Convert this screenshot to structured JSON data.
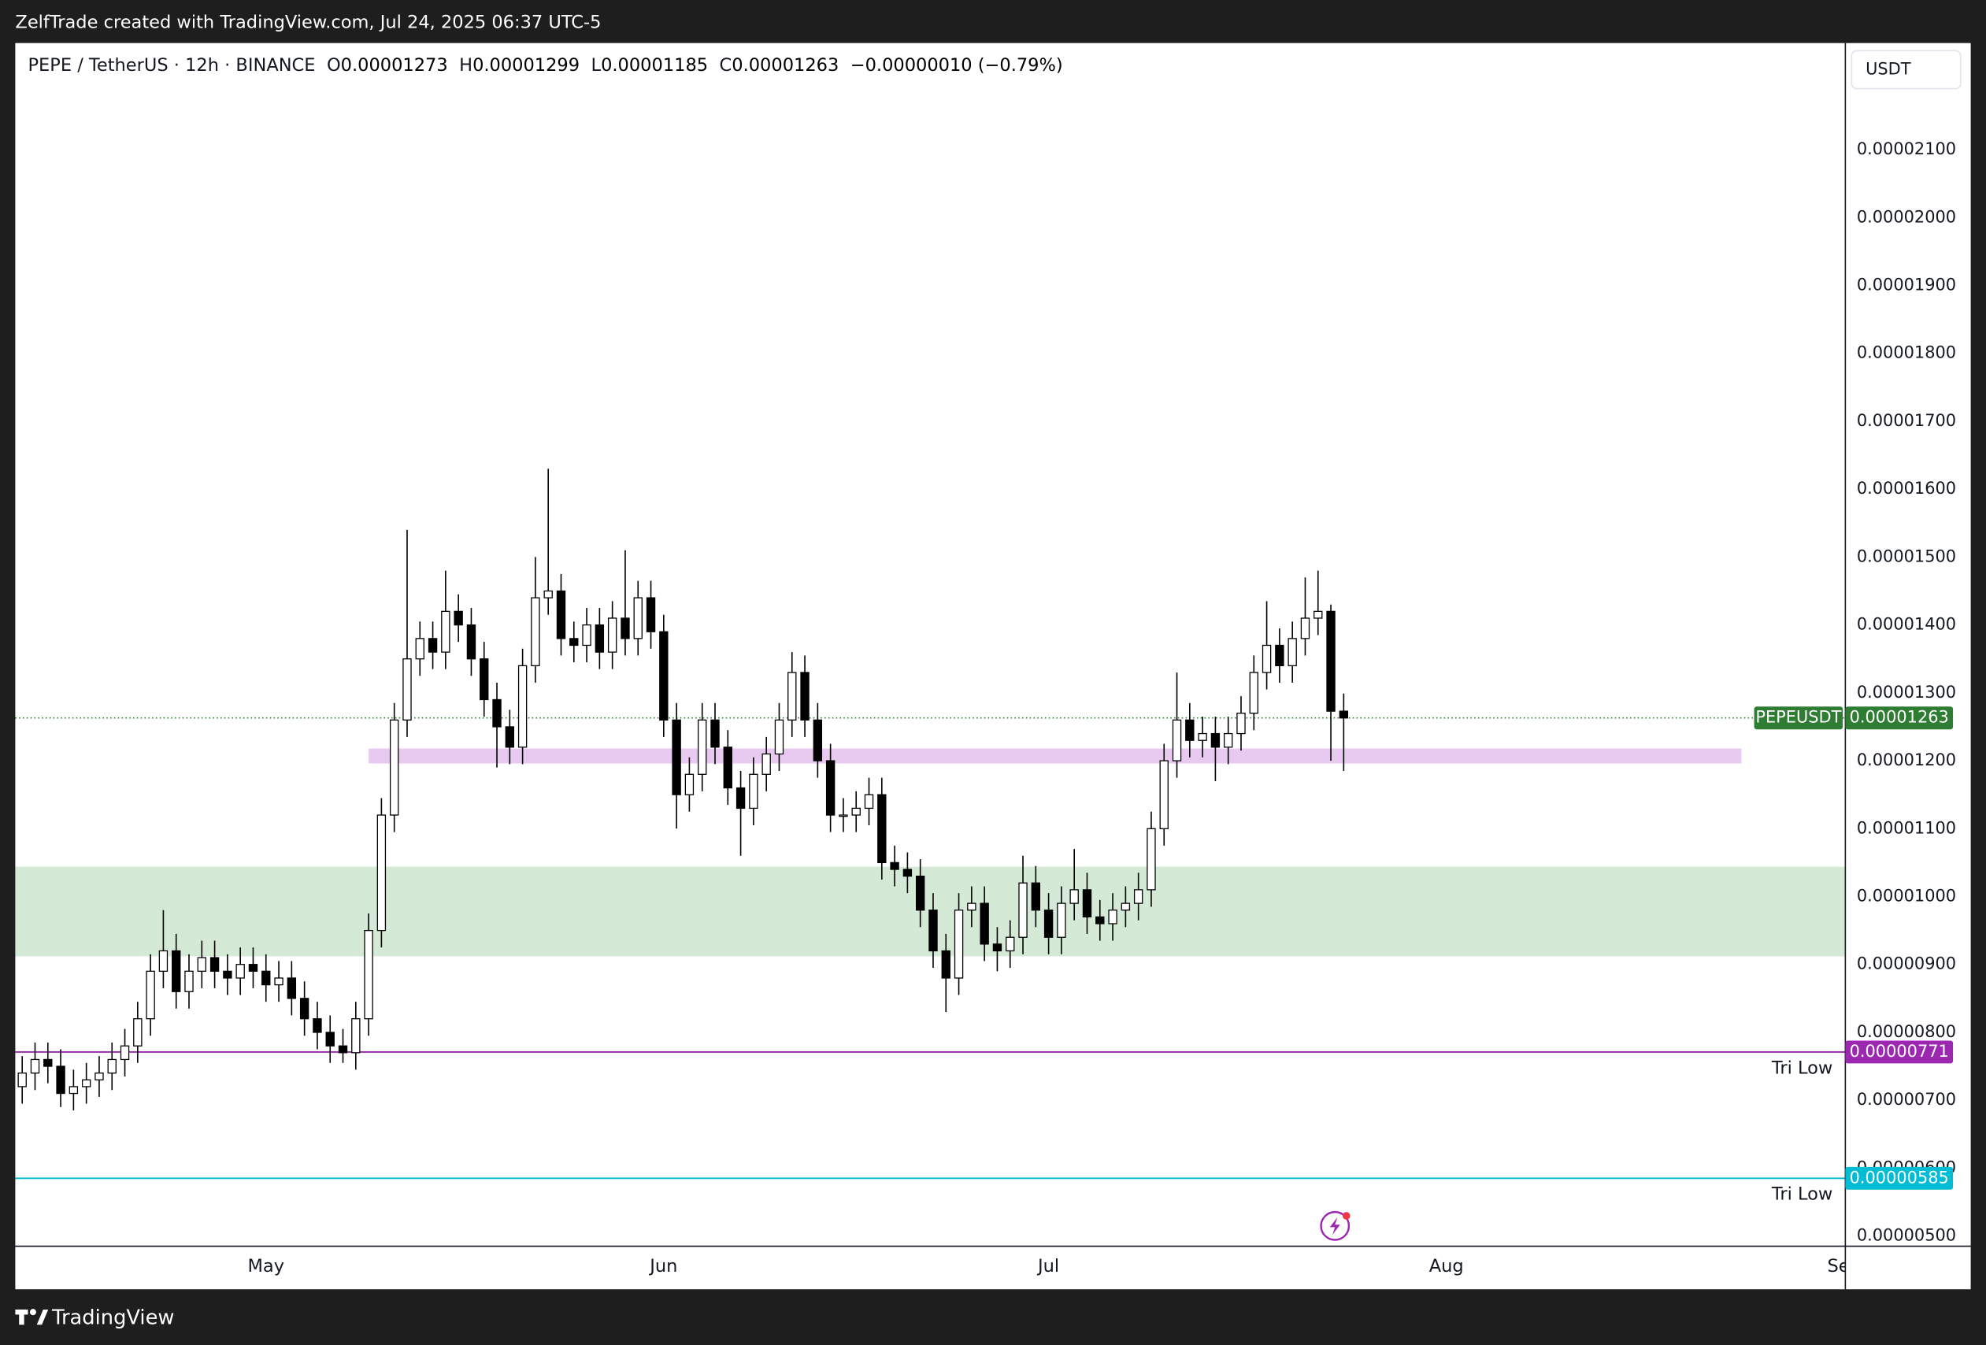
{
  "header": {
    "caption": "ZelfTrade created with TradingView.com, Jul 24, 2025 06:37 UTC-5",
    "currency": "USDT",
    "brand": "TradingView"
  },
  "chart_data": {
    "type": "candlestick",
    "legend": {
      "symbol": "PEPE / TetherUS · 12h · BINANCE",
      "fields": [
        {
          "label": "O",
          "value": "0.00001273"
        },
        {
          "label": "H",
          "value": "0.00001299"
        },
        {
          "label": "L",
          "value": "0.00001185"
        },
        {
          "label": "C",
          "value": "0.00001263"
        }
      ],
      "change": "−0.00000010 (−0.79%)"
    },
    "series": [
      {
        "name": "PEPEUSDT",
        "up_color": "#ffffff",
        "down_color": "#000000",
        "outline": "#000000",
        "open": [
          7.2e-06,
          7.4e-06,
          7.6e-06,
          7.5e-06,
          7.1e-06,
          7.2e-06,
          7.3e-06,
          7.4e-06,
          7.6e-06,
          7.8e-06,
          8.2e-06,
          8.9e-06,
          9.2e-06,
          8.6e-06,
          8.9e-06,
          9.1e-06,
          8.9e-06,
          8.8e-06,
          9e-06,
          8.9e-06,
          8.7e-06,
          8.8e-06,
          8.5e-06,
          8.2e-06,
          8e-06,
          7.8e-06,
          7.7e-06,
          8.2e-06,
          9.5e-06,
          1.12e-05,
          1.26e-05,
          1.35e-05,
          1.38e-05,
          1.36e-05,
          1.42e-05,
          1.4e-05,
          1.35e-05,
          1.29e-05,
          1.25e-05,
          1.22e-05,
          1.34e-05,
          1.44e-05,
          1.45e-05,
          1.38e-05,
          1.37e-05,
          1.4e-05,
          1.36e-05,
          1.41e-05,
          1.38e-05,
          1.44e-05,
          1.39e-05,
          1.26e-05,
          1.15e-05,
          1.18e-05,
          1.26e-05,
          1.22e-05,
          1.16e-05,
          1.13e-05,
          1.18e-05,
          1.21e-05,
          1.26e-05,
          1.33e-05,
          1.26e-05,
          1.2e-05,
          1.12e-05,
          1.12e-05,
          1.13e-05,
          1.15e-05,
          1.05e-05,
          1.04e-05,
          1.03e-05,
          9.8e-06,
          9.2e-06,
          8.8e-06,
          9.8e-06,
          9.9e-06,
          9.3e-06,
          9.2e-06,
          9.4e-06,
          1.02e-05,
          9.8e-06,
          9.4e-06,
          9.9e-06,
          1.01e-05,
          9.7e-06,
          9.6e-06,
          9.8e-06,
          9.9e-06,
          1.01e-05,
          1.1e-05,
          1.2e-05,
          1.26e-05,
          1.23e-05,
          1.24e-05,
          1.22e-05,
          1.24e-05,
          1.27e-05,
          1.33e-05,
          1.37e-05,
          1.34e-05,
          1.38e-05,
          1.41e-05,
          1.42e-05,
          1.273e-05
        ],
        "high": [
          7.65e-06,
          7.85e-06,
          7.85e-06,
          7.75e-06,
          7.45e-06,
          7.55e-06,
          7.65e-06,
          7.85e-06,
          8.05e-06,
          8.45e-06,
          9.15e-06,
          9.8e-06,
          9.45e-06,
          9.15e-06,
          9.35e-06,
          9.35e-06,
          9.15e-06,
          9.25e-06,
          9.25e-06,
          9.15e-06,
          9.05e-06,
          9.05e-06,
          8.75e-06,
          8.45e-06,
          8.25e-06,
          8.05e-06,
          8.45e-06,
          9.75e-06,
          1.145e-05,
          1.285e-05,
          1.54e-05,
          1.405e-05,
          1.405e-05,
          1.48e-05,
          1.445e-05,
          1.425e-05,
          1.375e-05,
          1.315e-05,
          1.275e-05,
          1.365e-05,
          1.5e-05,
          1.63e-05,
          1.475e-05,
          1.405e-05,
          1.425e-05,
          1.425e-05,
          1.435e-05,
          1.51e-05,
          1.465e-05,
          1.465e-05,
          1.415e-05,
          1.285e-05,
          1.205e-05,
          1.285e-05,
          1.285e-05,
          1.245e-05,
          1.185e-05,
          1.205e-05,
          1.235e-05,
          1.285e-05,
          1.36e-05,
          1.355e-05,
          1.285e-05,
          1.225e-05,
          1.145e-05,
          1.155e-05,
          1.175e-05,
          1.175e-05,
          1.075e-05,
          1.065e-05,
          1.055e-05,
          1.005e-05,
          9.45e-06,
          1.005e-05,
          1.015e-05,
          1.015e-05,
          9.55e-06,
          9.65e-06,
          1.06e-05,
          1.045e-05,
          1.005e-05,
          1.015e-05,
          1.07e-05,
          1.035e-05,
          9.95e-06,
          1.005e-05,
          1.015e-05,
          1.035e-05,
          1.125e-05,
          1.225e-05,
          1.33e-05,
          1.285e-05,
          1.265e-05,
          1.265e-05,
          1.265e-05,
          1.295e-05,
          1.355e-05,
          1.435e-05,
          1.395e-05,
          1.405e-05,
          1.47e-05,
          1.48e-05,
          1.43e-05,
          1.299e-05
        ],
        "low": [
          6.95e-06,
          7.15e-06,
          7.25e-06,
          6.9e-06,
          6.85e-06,
          6.95e-06,
          7.05e-06,
          7.15e-06,
          7.35e-06,
          7.55e-06,
          7.95e-06,
          8.65e-06,
          8.35e-06,
          8.35e-06,
          8.65e-06,
          8.65e-06,
          8.55e-06,
          8.55e-06,
          8.65e-06,
          8.45e-06,
          8.45e-06,
          8.25e-06,
          7.95e-06,
          7.75e-06,
          7.55e-06,
          7.55e-06,
          7.45e-06,
          7.95e-06,
          9.25e-06,
          1.095e-05,
          1.235e-05,
          1.325e-05,
          1.335e-05,
          1.335e-05,
          1.375e-05,
          1.325e-05,
          1.265e-05,
          1.19e-05,
          1.195e-05,
          1.195e-05,
          1.315e-05,
          1.415e-05,
          1.355e-05,
          1.345e-05,
          1.345e-05,
          1.335e-05,
          1.335e-05,
          1.355e-05,
          1.355e-05,
          1.365e-05,
          1.235e-05,
          1.1e-05,
          1.125e-05,
          1.155e-05,
          1.195e-05,
          1.135e-05,
          1.06e-05,
          1.105e-05,
          1.155e-05,
          1.185e-05,
          1.235e-05,
          1.235e-05,
          1.175e-05,
          1.095e-05,
          1.095e-05,
          1.095e-05,
          1.105e-05,
          1.025e-05,
          1.015e-05,
          1.005e-05,
          9.55e-06,
          8.95e-06,
          8.3e-06,
          8.55e-06,
          9.55e-06,
          9.05e-06,
          8.9e-06,
          8.95e-06,
          9.15e-06,
          9.55e-06,
          9.15e-06,
          9.15e-06,
          9.65e-06,
          9.45e-06,
          9.35e-06,
          9.35e-06,
          9.55e-06,
          9.65e-06,
          9.85e-06,
          1.075e-05,
          1.175e-05,
          1.205e-05,
          1.205e-05,
          1.17e-05,
          1.195e-05,
          1.215e-05,
          1.245e-05,
          1.305e-05,
          1.315e-05,
          1.315e-05,
          1.355e-05,
          1.385e-05,
          1.2e-05,
          1.185e-05
        ],
        "close": [
          7.4e-06,
          7.6e-06,
          7.5e-06,
          7.1e-06,
          7.2e-06,
          7.3e-06,
          7.4e-06,
          7.6e-06,
          7.8e-06,
          8.2e-06,
          8.9e-06,
          9.2e-06,
          8.6e-06,
          8.9e-06,
          9.1e-06,
          8.9e-06,
          8.8e-06,
          9e-06,
          8.9e-06,
          8.7e-06,
          8.8e-06,
          8.5e-06,
          8.2e-06,
          8e-06,
          7.8e-06,
          7.7e-06,
          8.2e-06,
          9.5e-06,
          1.12e-05,
          1.26e-05,
          1.35e-05,
          1.38e-05,
          1.36e-05,
          1.42e-05,
          1.4e-05,
          1.35e-05,
          1.29e-05,
          1.25e-05,
          1.22e-05,
          1.34e-05,
          1.44e-05,
          1.45e-05,
          1.38e-05,
          1.37e-05,
          1.4e-05,
          1.36e-05,
          1.41e-05,
          1.38e-05,
          1.44e-05,
          1.39e-05,
          1.26e-05,
          1.15e-05,
          1.18e-05,
          1.26e-05,
          1.22e-05,
          1.16e-05,
          1.13e-05,
          1.18e-05,
          1.21e-05,
          1.26e-05,
          1.33e-05,
          1.26e-05,
          1.2e-05,
          1.12e-05,
          1.12e-05,
          1.13e-05,
          1.15e-05,
          1.05e-05,
          1.04e-05,
          1.03e-05,
          9.8e-06,
          9.2e-06,
          8.8e-06,
          9.8e-06,
          9.9e-06,
          9.3e-06,
          9.2e-06,
          9.4e-06,
          1.02e-05,
          9.8e-06,
          9.4e-06,
          9.9e-06,
          1.01e-05,
          9.7e-06,
          9.6e-06,
          9.8e-06,
          9.9e-06,
          1.01e-05,
          1.1e-05,
          1.2e-05,
          1.26e-05,
          1.23e-05,
          1.24e-05,
          1.22e-05,
          1.24e-05,
          1.27e-05,
          1.33e-05,
          1.37e-05,
          1.34e-05,
          1.38e-05,
          1.41e-05,
          1.42e-05,
          1.273e-05,
          1.263e-05
        ]
      }
    ],
    "xlim": [
      -0.54,
      142.1
    ],
    "xticks": [
      {
        "value": 19,
        "label": "May"
      },
      {
        "value": 50,
        "label": "Jun"
      },
      {
        "value": 80,
        "label": "Jul"
      },
      {
        "value": 111,
        "label": "Aug"
      },
      {
        "value": 142,
        "label": "Sep"
      }
    ],
    "ylim": [
      4.85e-06,
      2.257e-05
    ],
    "yticks": [
      {
        "value": 5e-06,
        "label": "0.00000500"
      },
      {
        "value": 6e-06,
        "label": "0.00000600"
      },
      {
        "value": 7e-06,
        "label": "0.00000700"
      },
      {
        "value": 8e-06,
        "label": "0.00000800"
      },
      {
        "value": 9e-06,
        "label": "0.00000900"
      },
      {
        "value": 1e-05,
        "label": "0.00001000"
      },
      {
        "value": 1.1e-05,
        "label": "0.00001100"
      },
      {
        "value": 1.2e-05,
        "label": "0.00001200"
      },
      {
        "value": 1.3e-05,
        "label": "0.00001300"
      },
      {
        "value": 1.4e-05,
        "label": "0.00001400"
      },
      {
        "value": 1.5e-05,
        "label": "0.00001500"
      },
      {
        "value": 1.6e-05,
        "label": "0.00001600"
      },
      {
        "value": 1.7e-05,
        "label": "0.00001700"
      },
      {
        "value": 1.8e-05,
        "label": "0.00001800"
      },
      {
        "value": 1.9e-05,
        "label": "0.00001900"
      },
      {
        "value": 2e-05,
        "label": "0.00002000"
      },
      {
        "value": 2.1e-05,
        "label": "0.00002100"
      }
    ],
    "grid": false,
    "last_price": {
      "name": "PEPEUSDT",
      "value": 1.263e-05,
      "label": "0.00001263",
      "color": "#2e7d32"
    },
    "levels": [
      {
        "name": "Tri Low",
        "value": 7.71e-06,
        "label": "0.00000771",
        "color": "#9c27b0"
      },
      {
        "name": "Tri Low",
        "value": 5.85e-06,
        "label": "0.00000585",
        "color": "#00bcd4"
      }
    ],
    "zones": [
      {
        "from": 9.12e-06,
        "to": 1.044e-05,
        "x0": -0.54,
        "x1": 142.1,
        "color": "#d4ead6"
      },
      {
        "from": 1.196e-05,
        "to": 1.218e-05,
        "x0": 27,
        "x1": 134,
        "color": "#e8c9ef"
      }
    ]
  }
}
